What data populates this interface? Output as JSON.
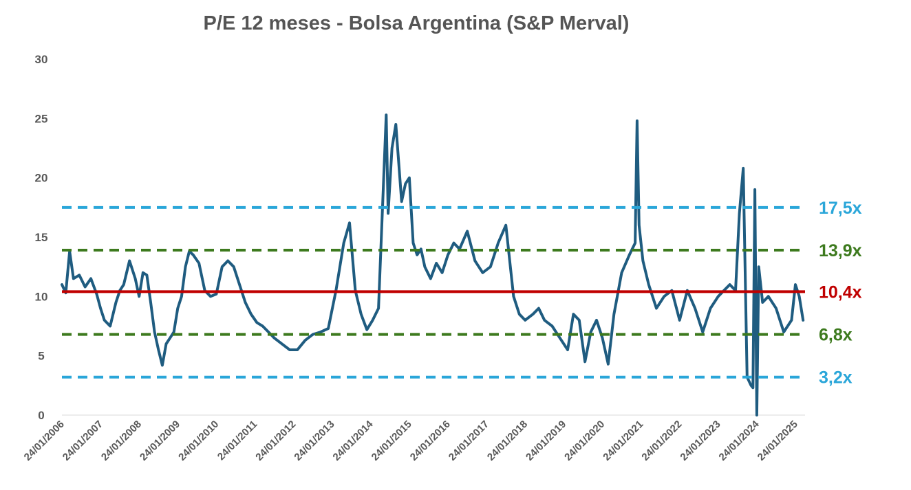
{
  "title": "P/E 12 meses - Bolsa Argentina (S&P Merval)",
  "chart_data": {
    "type": "line",
    "title": "P/E 12 meses - Bolsa Argentina (S&P Merval)",
    "xlabel": "",
    "ylabel": "",
    "ylim": [
      0,
      30
    ],
    "y_ticks": [
      "0",
      "5",
      "10",
      "15",
      "20",
      "25",
      "30"
    ],
    "x_ticks": [
      "24/01/2006",
      "24/01/2007",
      "24/01/2008",
      "24/01/2009",
      "24/01/2010",
      "24/01/2011",
      "24/01/2012",
      "24/01/2013",
      "24/01/2014",
      "24/01/2015",
      "24/01/2016",
      "24/01/2017",
      "24/01/2018",
      "24/01/2019",
      "24/01/2020",
      "24/01/2021",
      "24/01/2022",
      "24/01/2023",
      "24/01/2024",
      "24/01/2025"
    ],
    "grid": false,
    "legend": "none",
    "line_color": "#1f5c80",
    "series": [
      {
        "x": [
          2006.0,
          2006.1,
          2006.2,
          2006.3,
          2006.45,
          2006.6,
          2006.75,
          2006.9,
          2007.0,
          2007.1,
          2007.25,
          2007.4,
          2007.5,
          2007.6,
          2007.75,
          2007.9,
          2008.0,
          2008.1,
          2008.2,
          2008.3,
          2008.4,
          2008.5,
          2008.6,
          2008.7,
          2008.8,
          2008.9,
          2009.0,
          2009.1,
          2009.2,
          2009.3,
          2009.4,
          2009.55,
          2009.7,
          2009.85,
          2010.0,
          2010.15,
          2010.3,
          2010.45,
          2010.6,
          2010.75,
          2010.9,
          2011.05,
          2011.2,
          2011.35,
          2011.5,
          2011.7,
          2011.9,
          2012.1,
          2012.3,
          2012.5,
          2012.7,
          2012.9,
          2013.1,
          2013.3,
          2013.45,
          2013.6,
          2013.75,
          2013.9,
          2014.05,
          2014.2,
          2014.4,
          2014.45,
          2014.55,
          2014.65,
          2014.8,
          2014.9,
          2015.0,
          2015.1,
          2015.2,
          2015.3,
          2015.4,
          2015.55,
          2015.7,
          2015.85,
          2016.0,
          2016.15,
          2016.3,
          2016.5,
          2016.7,
          2016.9,
          2017.1,
          2017.3,
          2017.5,
          2017.7,
          2017.85,
          2018.0,
          2018.2,
          2018.35,
          2018.5,
          2018.7,
          2018.9,
          2019.1,
          2019.25,
          2019.4,
          2019.55,
          2019.7,
          2019.85,
          2020.0,
          2020.15,
          2020.3,
          2020.5,
          2020.7,
          2020.85,
          2020.9,
          2020.95,
          2021.05,
          2021.2,
          2021.4,
          2021.6,
          2021.8,
          2022.0,
          2022.2,
          2022.4,
          2022.6,
          2022.8,
          2023.0,
          2023.15,
          2023.3,
          2023.45,
          2023.55,
          2023.65,
          2023.75,
          2023.85,
          2023.9,
          2023.95,
          2024.0,
          2024.05,
          2024.15,
          2024.3,
          2024.5,
          2024.7,
          2024.9,
          2025.0,
          2025.1,
          2025.2
        ],
        "y": [
          11.0,
          10.3,
          13.8,
          11.5,
          11.8,
          10.8,
          11.5,
          10.2,
          9.0,
          8.0,
          7.5,
          9.5,
          10.5,
          11.0,
          13.0,
          11.5,
          10.0,
          12.0,
          11.8,
          9.5,
          7.0,
          5.5,
          4.2,
          6.0,
          6.5,
          7.0,
          9.0,
          10.0,
          12.5,
          13.8,
          13.5,
          12.8,
          10.5,
          10.0,
          10.2,
          12.5,
          13.0,
          12.5,
          11.0,
          9.5,
          8.5,
          7.8,
          7.5,
          7.0,
          6.5,
          6.0,
          5.5,
          5.5,
          6.3,
          6.8,
          7.0,
          7.3,
          10.5,
          14.5,
          16.2,
          10.5,
          8.5,
          7.2,
          8.0,
          9.0,
          25.3,
          17.0,
          22.5,
          24.5,
          18.0,
          19.5,
          20.0,
          14.5,
          13.5,
          14.0,
          12.5,
          11.5,
          12.8,
          12.0,
          13.5,
          14.5,
          14.0,
          15.5,
          13.0,
          12.0,
          12.5,
          14.5,
          16.0,
          10.0,
          8.5,
          8.0,
          8.5,
          9.0,
          8.0,
          7.5,
          6.5,
          5.5,
          8.5,
          8.0,
          4.5,
          7.0,
          8.0,
          6.5,
          4.3,
          8.5,
          12.0,
          13.5,
          14.5,
          24.8,
          16.0,
          13.0,
          11.0,
          9.0,
          10.0,
          10.5,
          8.0,
          10.5,
          9.0,
          7.0,
          9.0,
          10.0,
          10.5,
          11.0,
          10.5,
          17.0,
          20.8,
          3.2,
          2.5,
          2.3,
          19.0,
          0.0,
          12.5,
          9.5,
          10.0,
          9.0,
          7.0,
          8.0,
          11.0,
          10.0,
          8.0
        ]
      }
    ],
    "reference_lines": [
      {
        "value": 17.5,
        "label": "17,5x",
        "color": "#2aa6d9",
        "style": "dashed"
      },
      {
        "value": 13.9,
        "label": "13,9x",
        "color": "#3d7a1e",
        "style": "dashed"
      },
      {
        "value": 10.4,
        "label": "10,4x",
        "color": "#c00000",
        "style": "solid"
      },
      {
        "value": 6.8,
        "label": "6,8x",
        "color": "#3d7a1e",
        "style": "dashed"
      },
      {
        "value": 3.2,
        "label": "3,2x",
        "color": "#2aa6d9",
        "style": "dashed"
      }
    ]
  }
}
